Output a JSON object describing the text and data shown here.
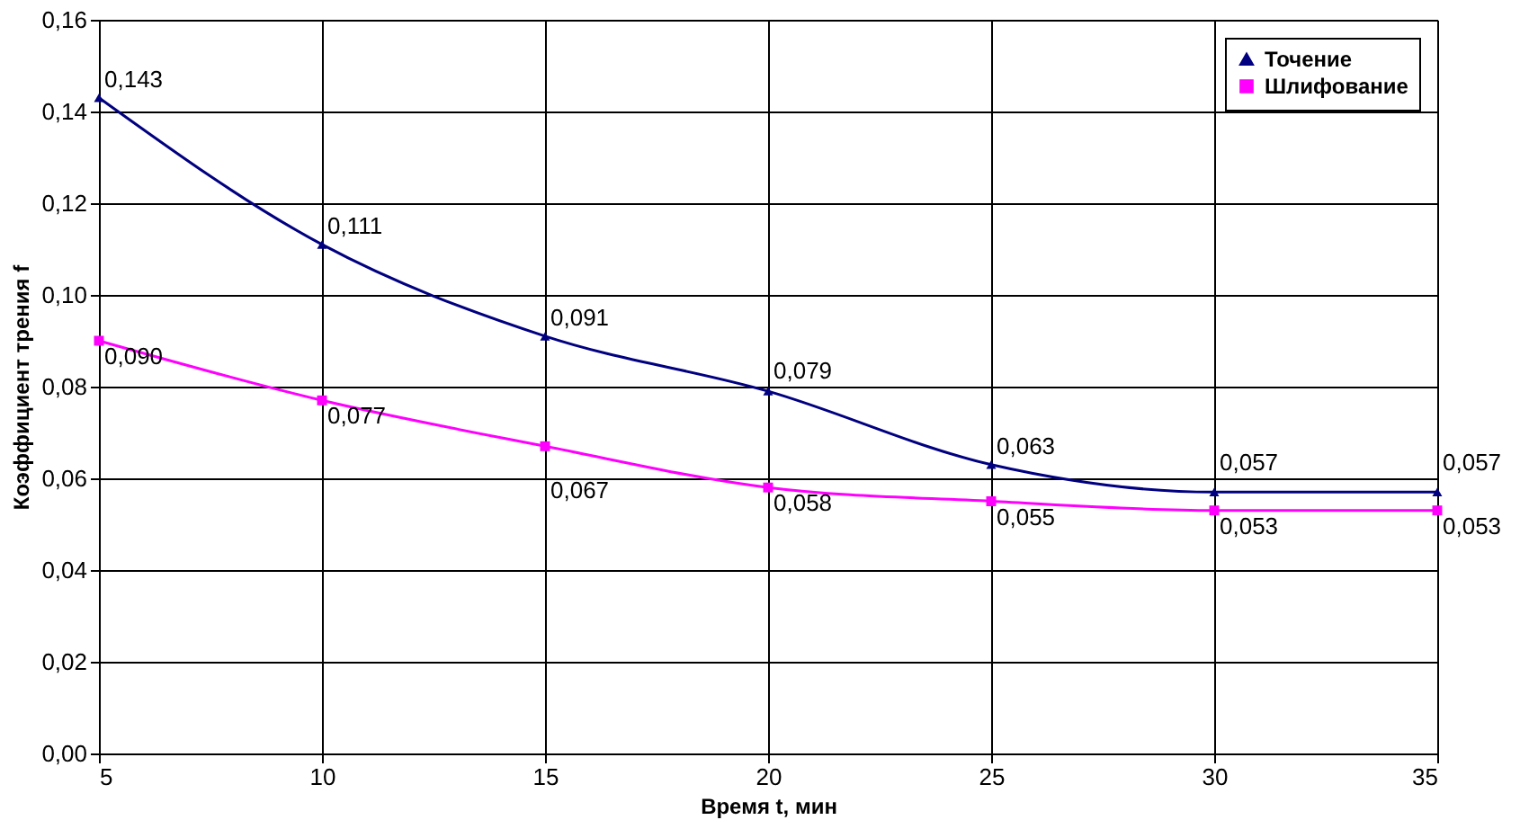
{
  "chart_data": {
    "type": "line",
    "xlabel": "Время t, мин",
    "ylabel": "Коэффициент трения f",
    "x": [
      5,
      10,
      15,
      20,
      25,
      30,
      35
    ],
    "series": [
      {
        "name": "Точение",
        "color": "#000080",
        "marker": "triangle",
        "values": [
          0.143,
          0.111,
          0.091,
          0.079,
          0.063,
          0.057,
          0.057
        ],
        "value_labels": [
          "0,143",
          "0,111",
          "0,091",
          "0,079",
          "0,063",
          "0,057",
          "0,057"
        ]
      },
      {
        "name": "Шлифование",
        "color": "#ff00ff",
        "marker": "square",
        "values": [
          0.09,
          0.077,
          0.067,
          0.058,
          0.055,
          0.053,
          0.053
        ],
        "value_labels": [
          "0,090",
          "0,077",
          "0,067",
          "0,058",
          "0,055",
          "0,053",
          "0,053"
        ]
      }
    ],
    "xlim": [
      5,
      35
    ],
    "xticks": [
      5,
      10,
      15,
      20,
      25,
      30,
      35
    ],
    "ylim": [
      0,
      0.16
    ],
    "yticks": [
      {
        "value": 0,
        "label": "0,00"
      },
      {
        "value": 0.02,
        "label": "0,02"
      },
      {
        "value": 0.04,
        "label": "0,04"
      },
      {
        "value": 0.06,
        "label": "0,06"
      },
      {
        "value": 0.08,
        "label": "0,08"
      },
      {
        "value": 0.1,
        "label": "0,10"
      },
      {
        "value": 0.12,
        "label": "0,12"
      },
      {
        "value": 0.14,
        "label": "0,14"
      },
      {
        "value": 0.16,
        "label": "0,16"
      }
    ],
    "grid": true,
    "legend": "top right",
    "line_style": "solid"
  }
}
